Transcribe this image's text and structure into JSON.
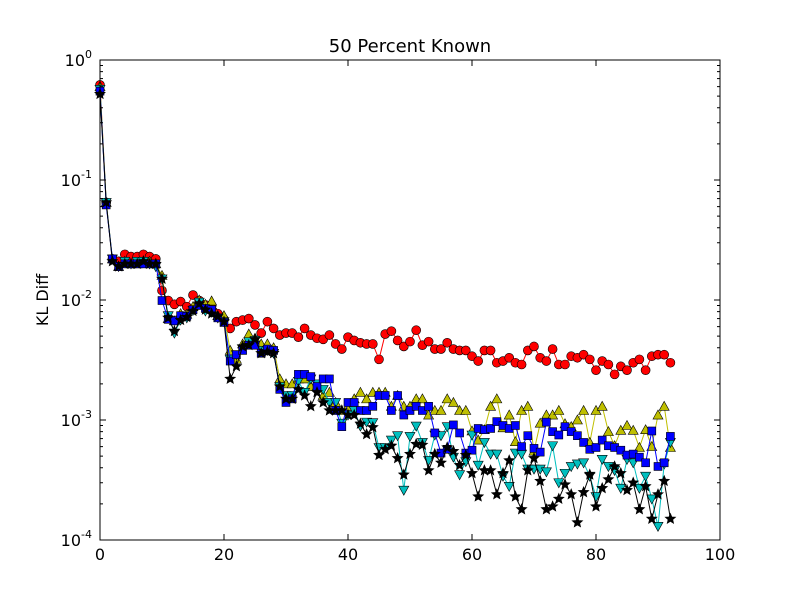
{
  "chart_data": {
    "type": "line",
    "title": "50 Percent Known",
    "xlabel": "",
    "ylabel": "KL Diff",
    "xlim": [
      0,
      100
    ],
    "ylim": [
      0.0001,
      1
    ],
    "yscale": "log",
    "xticks": [
      0,
      20,
      40,
      60,
      80,
      100
    ],
    "xtick_labels": [
      "0",
      "20",
      "40",
      "60",
      "80",
      "100"
    ],
    "yticks": [
      0.0001,
      0.001,
      0.01,
      0.1,
      1
    ],
    "ytick_labels": [
      {
        "base": "10",
        "exp": "-4"
      },
      {
        "base": "10",
        "exp": "-3"
      },
      {
        "base": "10",
        "exp": "-2"
      },
      {
        "base": "10",
        "exp": "-1"
      },
      {
        "base": "10",
        "exp": "0"
      }
    ],
    "grid": false,
    "legend": "none",
    "x": [
      0,
      1,
      2,
      3,
      4,
      5,
      6,
      7,
      8,
      9,
      10,
      11,
      12,
      13,
      14,
      15,
      16,
      17,
      18,
      19,
      20,
      21,
      22,
      23,
      24,
      25,
      26,
      27,
      28,
      29,
      30,
      31,
      32,
      33,
      34,
      35,
      36,
      37,
      38,
      39,
      40,
      41,
      42,
      43,
      44,
      45,
      46,
      47,
      48,
      49,
      50,
      51,
      52,
      53,
      54,
      55,
      56,
      57,
      58,
      59,
      60,
      61,
      62,
      63,
      64,
      65,
      66,
      67,
      68,
      69,
      70,
      71,
      72,
      73,
      74,
      75,
      76,
      77,
      78,
      79,
      80,
      81,
      82,
      83,
      84,
      85,
      86,
      87,
      88,
      89,
      90,
      91,
      92
    ],
    "series": [
      {
        "marker": "circle",
        "color": "#ff0000",
        "values": [
          0.62,
          0.065,
          0.022,
          0.021,
          0.024,
          0.023,
          0.023,
          0.024,
          0.023,
          0.022,
          0.012,
          0.0099,
          0.0092,
          0.0097,
          0.0088,
          0.011,
          0.0099,
          0.0091,
          0.0089,
          0.0077,
          0.0069,
          0.0058,
          0.0066,
          0.0068,
          0.007,
          0.0062,
          0.0053,
          0.0066,
          0.0058,
          0.0051,
          0.0053,
          0.0053,
          0.0049,
          0.0058,
          0.0051,
          0.0048,
          0.0047,
          0.0051,
          0.0043,
          0.0039,
          0.0049,
          0.0046,
          0.0044,
          0.0043,
          0.0043,
          0.0032,
          0.0052,
          0.0055,
          0.0046,
          0.0041,
          0.0045,
          0.0056,
          0.0042,
          0.0045,
          0.0039,
          0.0039,
          0.0044,
          0.0039,
          0.0038,
          0.0038,
          0.0034,
          0.0031,
          0.0038,
          0.0038,
          0.003,
          0.0031,
          0.0033,
          0.003,
          0.0029,
          0.0038,
          0.0041,
          0.0033,
          0.0031,
          0.0039,
          0.0029,
          0.0029,
          0.0034,
          0.0033,
          0.0035,
          0.0032,
          0.0026,
          0.0031,
          0.0029,
          0.0024,
          0.0028,
          0.0026,
          0.003,
          0.0032,
          0.0026,
          0.0034,
          0.0035,
          0.0035,
          0.003
        ]
      },
      {
        "marker": "triangle-up",
        "color": "#bfbf00",
        "values": [
          0.6,
          0.065,
          0.022,
          0.019,
          0.021,
          0.02,
          0.02,
          0.021,
          0.021,
          0.02,
          0.016,
          0.007,
          0.0067,
          0.0077,
          0.0076,
          0.0088,
          0.01,
          0.0092,
          0.0098,
          0.0074,
          0.0074,
          0.0038,
          0.0032,
          0.0043,
          0.0052,
          0.0048,
          0.0043,
          0.0043,
          0.004,
          0.0022,
          0.002,
          0.002,
          0.0022,
          0.0022,
          0.0019,
          0.0019,
          0.0016,
          0.0017,
          0.0014,
          0.0012,
          0.0013,
          0.0015,
          0.0017,
          0.0015,
          0.0017,
          0.0017,
          0.0017,
          0.0013,
          0.0016,
          0.0013,
          0.0013,
          0.0015,
          0.0015,
          0.0011,
          0.0012,
          0.0012,
          0.0015,
          0.0014,
          0.0012,
          0.0012,
          0.00081,
          0.00068,
          0.00083,
          0.0013,
          0.0015,
          0.00086,
          0.0011,
          0.00066,
          0.0012,
          0.0013,
          0.00055,
          0.00094,
          0.0011,
          0.0011,
          0.0012,
          0.00093,
          0.00088,
          0.001,
          0.0012,
          0.00065,
          0.0012,
          0.0013,
          0.0008,
          0.00061,
          0.00082,
          0.0009,
          0.00082,
          0.00059,
          0.00083,
          0.0006,
          0.0011,
          0.0013,
          0.00059
        ]
      },
      {
        "marker": "triangle-down",
        "color": "#00bfbf",
        "values": [
          0.57,
          0.065,
          0.022,
          0.019,
          0.021,
          0.02,
          0.021,
          0.021,
          0.02,
          0.019,
          0.015,
          0.0074,
          0.0053,
          0.0068,
          0.0071,
          0.0082,
          0.0096,
          0.0081,
          0.0079,
          0.0071,
          0.0066,
          0.0032,
          0.0035,
          0.0039,
          0.0045,
          0.0046,
          0.0038,
          0.0038,
          0.0036,
          0.0019,
          0.0016,
          0.0016,
          0.0021,
          0.0017,
          0.0022,
          0.002,
          0.0018,
          0.0014,
          0.0014,
          0.00094,
          0.0011,
          0.0012,
          0.00089,
          0.00096,
          0.00095,
          0.00059,
          0.00059,
          0.00068,
          0.00074,
          0.00026,
          0.00073,
          0.00089,
          0.00065,
          0.00046,
          0.00075,
          0.00074,
          0.00088,
          0.00049,
          0.00035,
          0.00045,
          0.00075,
          0.00042,
          0.00065,
          0.00052,
          0.00052,
          0.00034,
          0.00028,
          0.00053,
          0.00052,
          0.00039,
          0.00039,
          0.00039,
          0.00037,
          0.00061,
          0.0003,
          0.00036,
          0.00041,
          0.00043,
          0.00044,
          0.00034,
          0.00023,
          0.00047,
          0.00041,
          0.00038,
          0.00027,
          0.00047,
          0.00044,
          0.00027,
          0.00034,
          0.00022,
          0.00013,
          0.00043,
          0.00065
        ]
      },
      {
        "marker": "square",
        "color": "#0000ff",
        "values": [
          0.55,
          0.062,
          0.022,
          0.019,
          0.02,
          0.02,
          0.02,
          0.02,
          0.02,
          0.02,
          0.0099,
          0.0069,
          0.0067,
          0.0074,
          0.0073,
          0.0083,
          0.009,
          0.0085,
          0.0083,
          0.0071,
          0.0065,
          0.0031,
          0.0035,
          0.0038,
          0.0042,
          0.0042,
          0.0036,
          0.0039,
          0.0038,
          0.0018,
          0.0014,
          0.0015,
          0.0024,
          0.0024,
          0.0023,
          0.0019,
          0.0022,
          0.0022,
          0.0012,
          0.00088,
          0.0014,
          0.0014,
          0.0012,
          0.0012,
          0.0013,
          0.0016,
          0.0016,
          0.0012,
          0.0016,
          0.0011,
          0.0012,
          0.0013,
          0.0012,
          0.0013,
          0.00078,
          0.00053,
          0.00057,
          0.00091,
          0.00078,
          0.00053,
          0.00056,
          0.00085,
          0.00083,
          0.00085,
          0.00097,
          0.0009,
          0.00085,
          0.0009,
          0.0006,
          0.00074,
          0.00058,
          0.00054,
          0.00096,
          0.0008,
          0.00075,
          0.00088,
          0.0008,
          0.00074,
          0.00065,
          0.00057,
          0.00059,
          0.00068,
          0.00061,
          0.00059,
          0.00056,
          0.00051,
          0.00052,
          0.00049,
          0.00044,
          0.00081,
          0.00041,
          0.00044,
          0.00073
        ]
      },
      {
        "marker": "star",
        "color": "#000000",
        "values": [
          0.52,
          0.065,
          0.021,
          0.019,
          0.02,
          0.02,
          0.02,
          0.021,
          0.02,
          0.02,
          0.015,
          0.0071,
          0.0055,
          0.0068,
          0.0072,
          0.0081,
          0.0093,
          0.0083,
          0.0077,
          0.0073,
          0.0066,
          0.0022,
          0.0028,
          0.0041,
          0.0042,
          0.0047,
          0.0036,
          0.0037,
          0.0036,
          0.0019,
          0.0015,
          0.0015,
          0.0018,
          0.0016,
          0.0013,
          0.0017,
          0.0014,
          0.0012,
          0.0012,
          0.0012,
          0.0011,
          0.0011,
          0.00093,
          0.00076,
          0.00087,
          0.00051,
          0.00057,
          0.00061,
          0.00048,
          0.00035,
          0.00052,
          0.00063,
          0.00062,
          0.00038,
          0.00052,
          0.00044,
          0.00059,
          0.00055,
          0.00042,
          0.00051,
          0.00036,
          0.00023,
          0.00038,
          0.00038,
          0.00024,
          0.00036,
          0.00046,
          0.00023,
          0.00018,
          0.00038,
          0.00048,
          0.00031,
          0.00018,
          0.00019,
          0.00022,
          0.00029,
          0.00024,
          0.00014,
          0.00025,
          0.00035,
          0.00019,
          0.00027,
          0.00032,
          0.00041,
          0.00036,
          0.00026,
          0.0003,
          0.00018,
          0.00028,
          0.00015,
          0.00024,
          0.00031,
          0.00015
        ]
      }
    ]
  }
}
